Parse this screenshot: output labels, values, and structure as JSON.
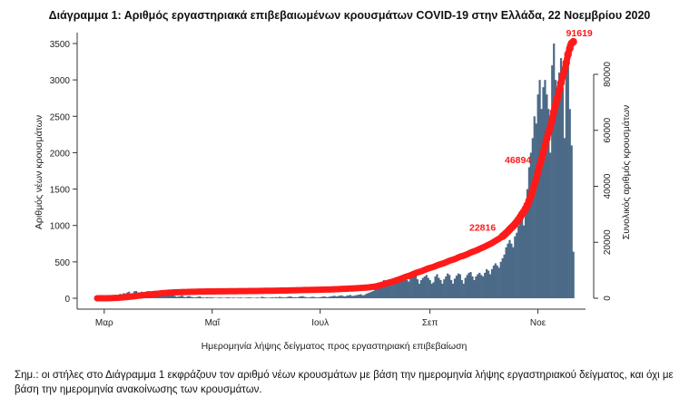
{
  "chart_data": {
    "type": "bar",
    "title": "Διάγραμμα 1: Αριθμός εργαστηριακά επιβεβαιωμένων κρουσμάτων COVID-19 στην Ελλάδα, 22 Νοεμβρίου 2020",
    "xlabel": "Ημερομηνία λήψης δείγματος προς εργαστηριακή επιβεβαίωση",
    "ylabel": "Αριθμός νέων κρουσμάτων",
    "y2label": "Συνολικός αριθμός κρουσμάτων",
    "start_date": "2020-02-26",
    "x_ticks": [
      {
        "label": "Μαρ",
        "day": 4
      },
      {
        "label": "Μαΐ",
        "day": 65
      },
      {
        "label": "Ιουλ",
        "day": 126
      },
      {
        "label": "Σεπ",
        "day": 188
      },
      {
        "label": "Νοε",
        "day": 249
      }
    ],
    "ylim": [
      0,
      3500
    ],
    "y_ticks": [
      "0",
      "500",
      "1000",
      "1500",
      "2000",
      "2500",
      "3000",
      "3500"
    ],
    "y2lim": [
      0,
      80000
    ],
    "y2_ticks": [
      "0",
      "20000",
      "40000",
      "60000",
      "80000"
    ],
    "series": [
      {
        "name": "Νέα κρούσματα",
        "type": "bar",
        "color": "#4b6a87",
        "values": [
          1,
          2,
          3,
          0,
          3,
          5,
          8,
          12,
          20,
          30,
          45,
          30,
          40,
          60,
          55,
          70,
          65,
          80,
          90,
          60,
          70,
          95,
          100,
          80,
          75,
          90,
          85,
          70,
          95,
          100,
          80,
          75,
          90,
          70,
          60,
          70,
          90,
          60,
          50,
          60,
          70,
          55,
          40,
          50,
          30,
          20,
          25,
          30,
          40,
          20,
          15,
          25,
          30,
          20,
          15,
          10,
          15,
          20,
          25,
          12,
          10,
          8,
          15,
          10,
          12,
          10,
          8,
          5,
          7,
          10,
          8,
          6,
          5,
          10,
          12,
          8,
          6,
          10,
          5,
          7,
          8,
          10,
          6,
          5,
          8,
          10,
          12,
          8,
          6,
          5,
          10,
          8,
          6,
          20,
          15,
          10,
          8,
          6,
          10,
          12,
          8,
          15,
          10,
          20,
          15,
          12,
          10,
          15,
          20,
          25,
          18,
          12,
          15,
          10,
          20,
          25,
          30,
          20,
          15,
          10,
          12,
          18,
          20,
          15,
          10,
          12,
          15,
          20,
          25,
          20,
          15,
          20,
          25,
          30,
          35,
          25,
          30,
          35,
          40,
          30,
          25,
          35,
          40,
          45,
          30,
          35,
          40,
          45,
          50,
          55,
          40,
          45,
          60,
          70,
          80,
          90,
          100,
          120,
          150,
          180,
          200,
          220,
          250,
          240,
          230,
          200,
          180,
          220,
          260,
          280,
          250,
          230,
          300,
          320,
          280,
          250,
          230,
          280,
          300,
          340,
          310,
          260,
          200,
          250,
          280,
          300,
          320,
          280,
          250,
          200,
          220,
          300,
          330,
          280,
          250,
          200,
          260,
          300,
          340,
          320,
          250,
          200,
          270,
          310,
          340,
          330,
          250,
          200,
          280,
          320,
          350,
          360,
          300,
          250,
          300,
          330,
          350,
          320,
          300,
          350,
          400,
          380,
          330,
          400,
          450,
          480,
          450,
          420,
          500,
          550,
          600,
          700,
          750,
          800,
          750,
          700,
          850,
          900,
          1000,
          1100,
          1200,
          1000,
          1300,
          1500,
          1800,
          2000,
          2200,
          2500,
          2400,
          2800,
          3000,
          2600,
          2900,
          3000,
          2800,
          2600,
          2000,
          3200,
          3500,
          3000,
          2800,
          3100,
          3300,
          2900,
          2200,
          3400,
          3500,
          2600,
          2100,
          640
        ]
      },
      {
        "name": "Συνολικά κρούσματα",
        "type": "line",
        "axis": "right",
        "color": "#ff1a1a",
        "final_total": 91619
      }
    ],
    "annotations": [
      {
        "text": "22816",
        "day": 228,
        "value": 22816
      },
      {
        "text": "46894",
        "day": 248,
        "value": 46894
      },
      {
        "text": "91619",
        "day": 269,
        "value": 91619
      }
    ]
  },
  "note": "Σημ.: οι στήλες στο Διάγραμμα 1 εκφράζουν τον αριθμό νέων κρουσμάτων με βάση την ημερομηνία λήψης εργαστηριακού δείγματος, και όχι με βάση την ημερομηνία ανακοίνωσης των κρουσμάτων."
}
